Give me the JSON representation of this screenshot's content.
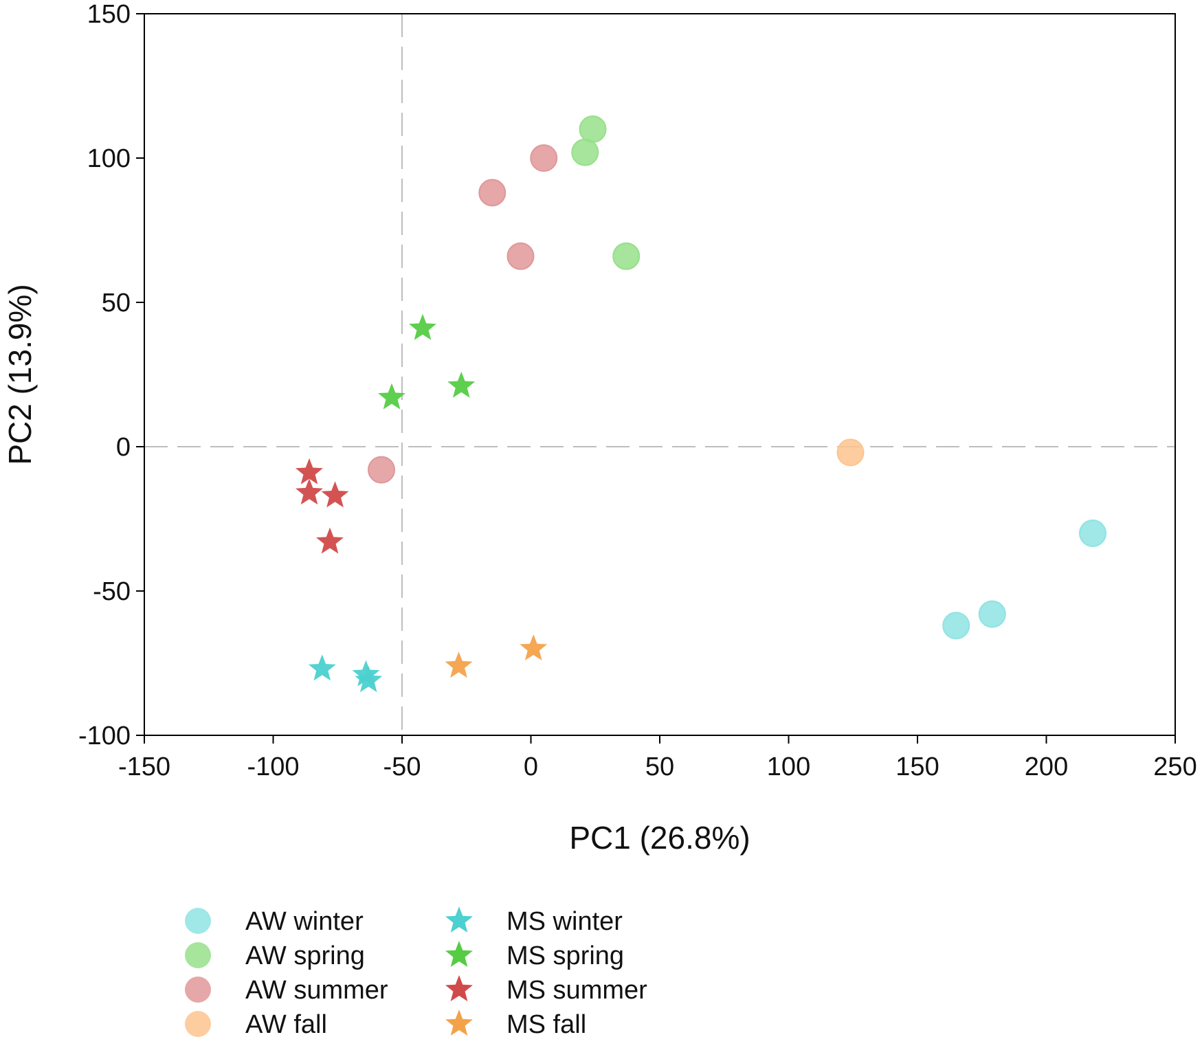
{
  "chart_data": {
    "type": "scatter",
    "xlabel": "PC1 (26.8%)",
    "ylabel": "PC2 (13.9%)",
    "xlim": [
      -150,
      250
    ],
    "ylim": [
      -100,
      150
    ],
    "xticks": [
      -150,
      -100,
      -50,
      0,
      50,
      100,
      150,
      200,
      250
    ],
    "yticks": [
      -100,
      -50,
      0,
      50,
      100,
      150
    ],
    "reference_lines": {
      "x": -50,
      "y": 0
    },
    "legend_position": "bottom-left",
    "series": [
      {
        "name": "AW winter",
        "marker": "circle",
        "color": "#8fe3e3",
        "points": [
          [
            218,
            -30
          ],
          [
            179,
            -58
          ],
          [
            165,
            -62
          ]
        ]
      },
      {
        "name": "AW spring",
        "marker": "circle",
        "color": "#96e08a",
        "points": [
          [
            24,
            110
          ],
          [
            21,
            102
          ],
          [
            37,
            66
          ]
        ]
      },
      {
        "name": "AW summer",
        "marker": "circle",
        "color": "#e09898",
        "points": [
          [
            5,
            100
          ],
          [
            -15,
            88
          ],
          [
            -4,
            66
          ],
          [
            -58,
            -8
          ]
        ]
      },
      {
        "name": "AW fall",
        "marker": "circle",
        "color": "#fdc48f",
        "points": [
          [
            124,
            -2
          ]
        ]
      },
      {
        "name": "MS winter",
        "marker": "star",
        "color": "#4cd0d0",
        "points": [
          [
            -81,
            -77
          ],
          [
            -64,
            -79
          ],
          [
            -63,
            -81
          ]
        ]
      },
      {
        "name": "MS spring",
        "marker": "star",
        "color": "#55cc44",
        "points": [
          [
            -42,
            41
          ],
          [
            -54,
            17
          ],
          [
            -27,
            21
          ]
        ]
      },
      {
        "name": "MS summer",
        "marker": "star",
        "color": "#d14a4a",
        "points": [
          [
            -86,
            -9
          ],
          [
            -86,
            -16
          ],
          [
            -76,
            -17
          ],
          [
            -78,
            -33
          ]
        ]
      },
      {
        "name": "MS fall",
        "marker": "star",
        "color": "#f4a24a",
        "points": [
          [
            -28,
            -76
          ],
          [
            1,
            -70
          ]
        ]
      }
    ]
  }
}
